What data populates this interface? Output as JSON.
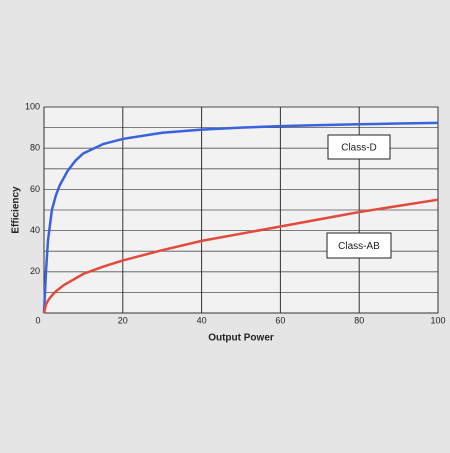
{
  "chart_data": {
    "type": "line",
    "x_label": "Output Power",
    "y_label": "Efficiency",
    "xlim": [
      0,
      100
    ],
    "ylim": [
      0,
      100
    ],
    "xticks": [
      0,
      20,
      40,
      60,
      80,
      100
    ],
    "yticks": [
      20,
      40,
      60,
      80,
      100
    ],
    "yminorticks": [
      10,
      30,
      50,
      70,
      90
    ],
    "grid": true,
    "series": [
      {
        "name": "Class-D",
        "color": "#3a62dc",
        "x": [
          0,
          0.5,
          1,
          2,
          3,
          4,
          6,
          8,
          10,
          15,
          20,
          30,
          40,
          50,
          60,
          70,
          80,
          90,
          100
        ],
        "values": [
          0,
          20,
          35,
          50,
          57,
          62,
          69,
          74,
          77.5,
          82,
          84.5,
          87.5,
          89,
          90,
          90.7,
          91.2,
          91.6,
          92,
          92.3
        ]
      },
      {
        "name": "Class-AB",
        "color": "#e24b3b",
        "x": [
          0,
          0.5,
          1,
          2,
          3,
          5,
          10,
          15,
          20,
          30,
          40,
          50,
          60,
          70,
          80,
          90,
          100
        ],
        "values": [
          0,
          4,
          6,
          8.5,
          10.5,
          13.5,
          19,
          22.5,
          25.5,
          30.5,
          35,
          38.5,
          42,
          45.5,
          49,
          52,
          55
        ]
      }
    ],
    "annotations": [
      "Class-D",
      "Class-AB"
    ]
  }
}
